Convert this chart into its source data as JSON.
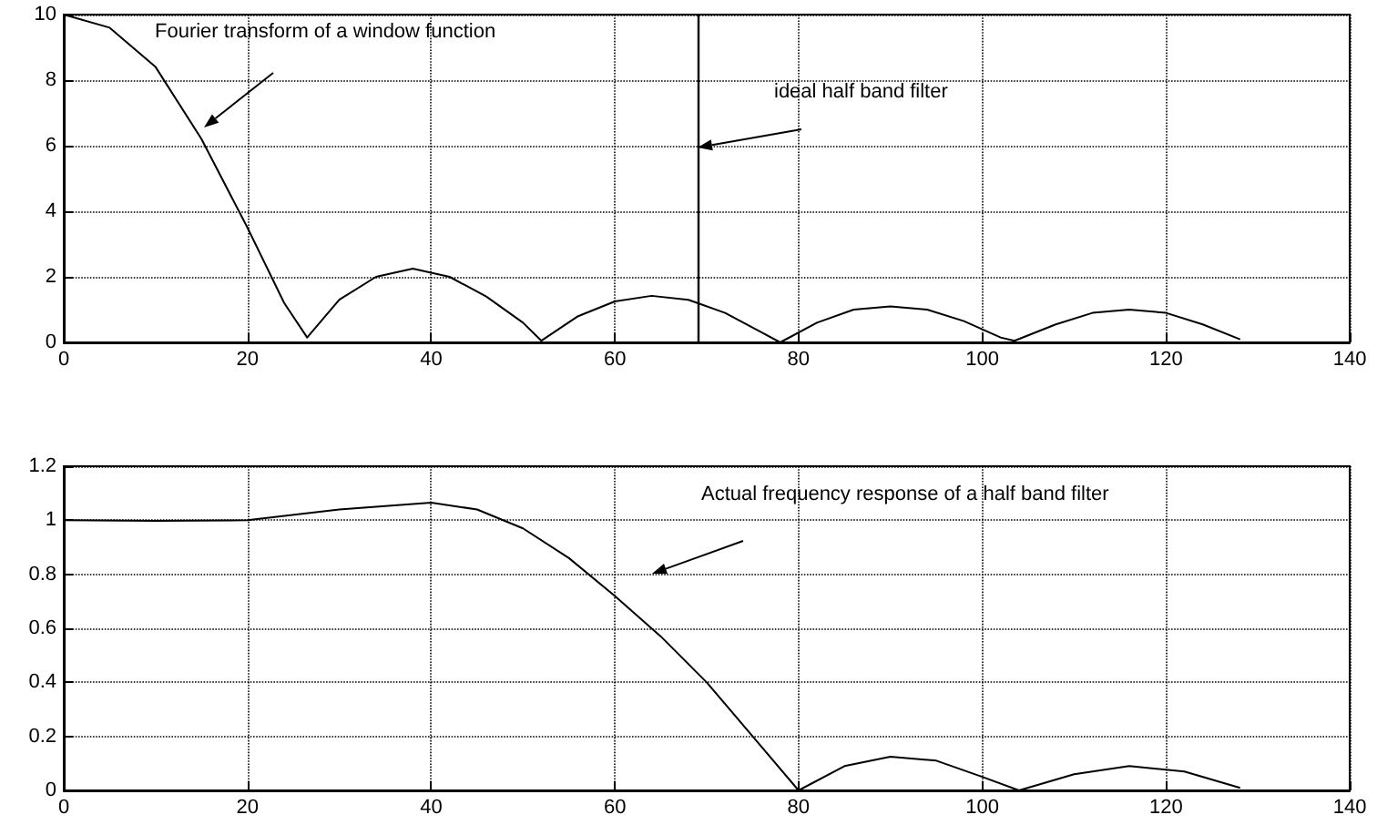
{
  "chart_data": [
    {
      "type": "line",
      "x": [
        0,
        5,
        10,
        15,
        20,
        24,
        26.5,
        30,
        34,
        38,
        42,
        46,
        50,
        52,
        56,
        60,
        64,
        68,
        72,
        76,
        78,
        82,
        86,
        90,
        94,
        98,
        102,
        103.5,
        108,
        112,
        116,
        120,
        124,
        128
      ],
      "series": [
        {
          "color": "#000000",
          "values": [
            10,
            9.6,
            8.4,
            6.2,
            3.5,
            1.2,
            0.15,
            1.3,
            2.0,
            2.25,
            2.0,
            1.4,
            0.6,
            0.05,
            0.8,
            1.25,
            1.42,
            1.3,
            0.9,
            0.3,
            0,
            0.6,
            1.0,
            1.1,
            1.0,
            0.65,
            0.15,
            0.05,
            0.55,
            0.9,
            1.0,
            0.9,
            0.55,
            0.1
          ]
        }
      ],
      "xlim": [
        0,
        140
      ],
      "xticks": [
        0,
        20,
        40,
        60,
        80,
        100,
        120,
        140
      ],
      "ylim": [
        0,
        10
      ],
      "yticks": [
        0,
        2,
        4,
        6,
        8,
        10
      ],
      "grid": true,
      "line_style": "solid",
      "marker": "none",
      "ref_lines": [
        {
          "axis": "x",
          "value": 69,
          "color": "#000000",
          "line_style": "solid"
        }
      ],
      "annotations": [
        "Fourier transform of a window function",
        "ideal half band filter"
      ]
    },
    {
      "type": "line",
      "x": [
        0,
        10,
        20,
        30,
        40,
        45,
        50,
        55,
        60,
        65,
        70,
        75,
        80,
        85,
        90,
        95,
        100,
        104,
        110,
        116,
        122,
        128
      ],
      "series": [
        {
          "color": "#000000",
          "values": [
            1,
            0.998,
            1.0,
            1.04,
            1.065,
            1.04,
            0.97,
            0.86,
            0.72,
            0.57,
            0.4,
            0.2,
            0,
            0.09,
            0.125,
            0.11,
            0.05,
            0,
            0.06,
            0.09,
            0.07,
            0.01
          ]
        }
      ],
      "xlim": [
        0,
        140
      ],
      "xticks": [
        0,
        20,
        40,
        60,
        80,
        100,
        120,
        140
      ],
      "ylim": [
        0,
        1.2
      ],
      "yticks": [
        0,
        0.2,
        0.4,
        0.6,
        0.8,
        1,
        1.2
      ],
      "grid": true,
      "line_style": "solid",
      "marker": "none",
      "annotations": [
        "Actual frequency response of a half band filter"
      ]
    }
  ]
}
